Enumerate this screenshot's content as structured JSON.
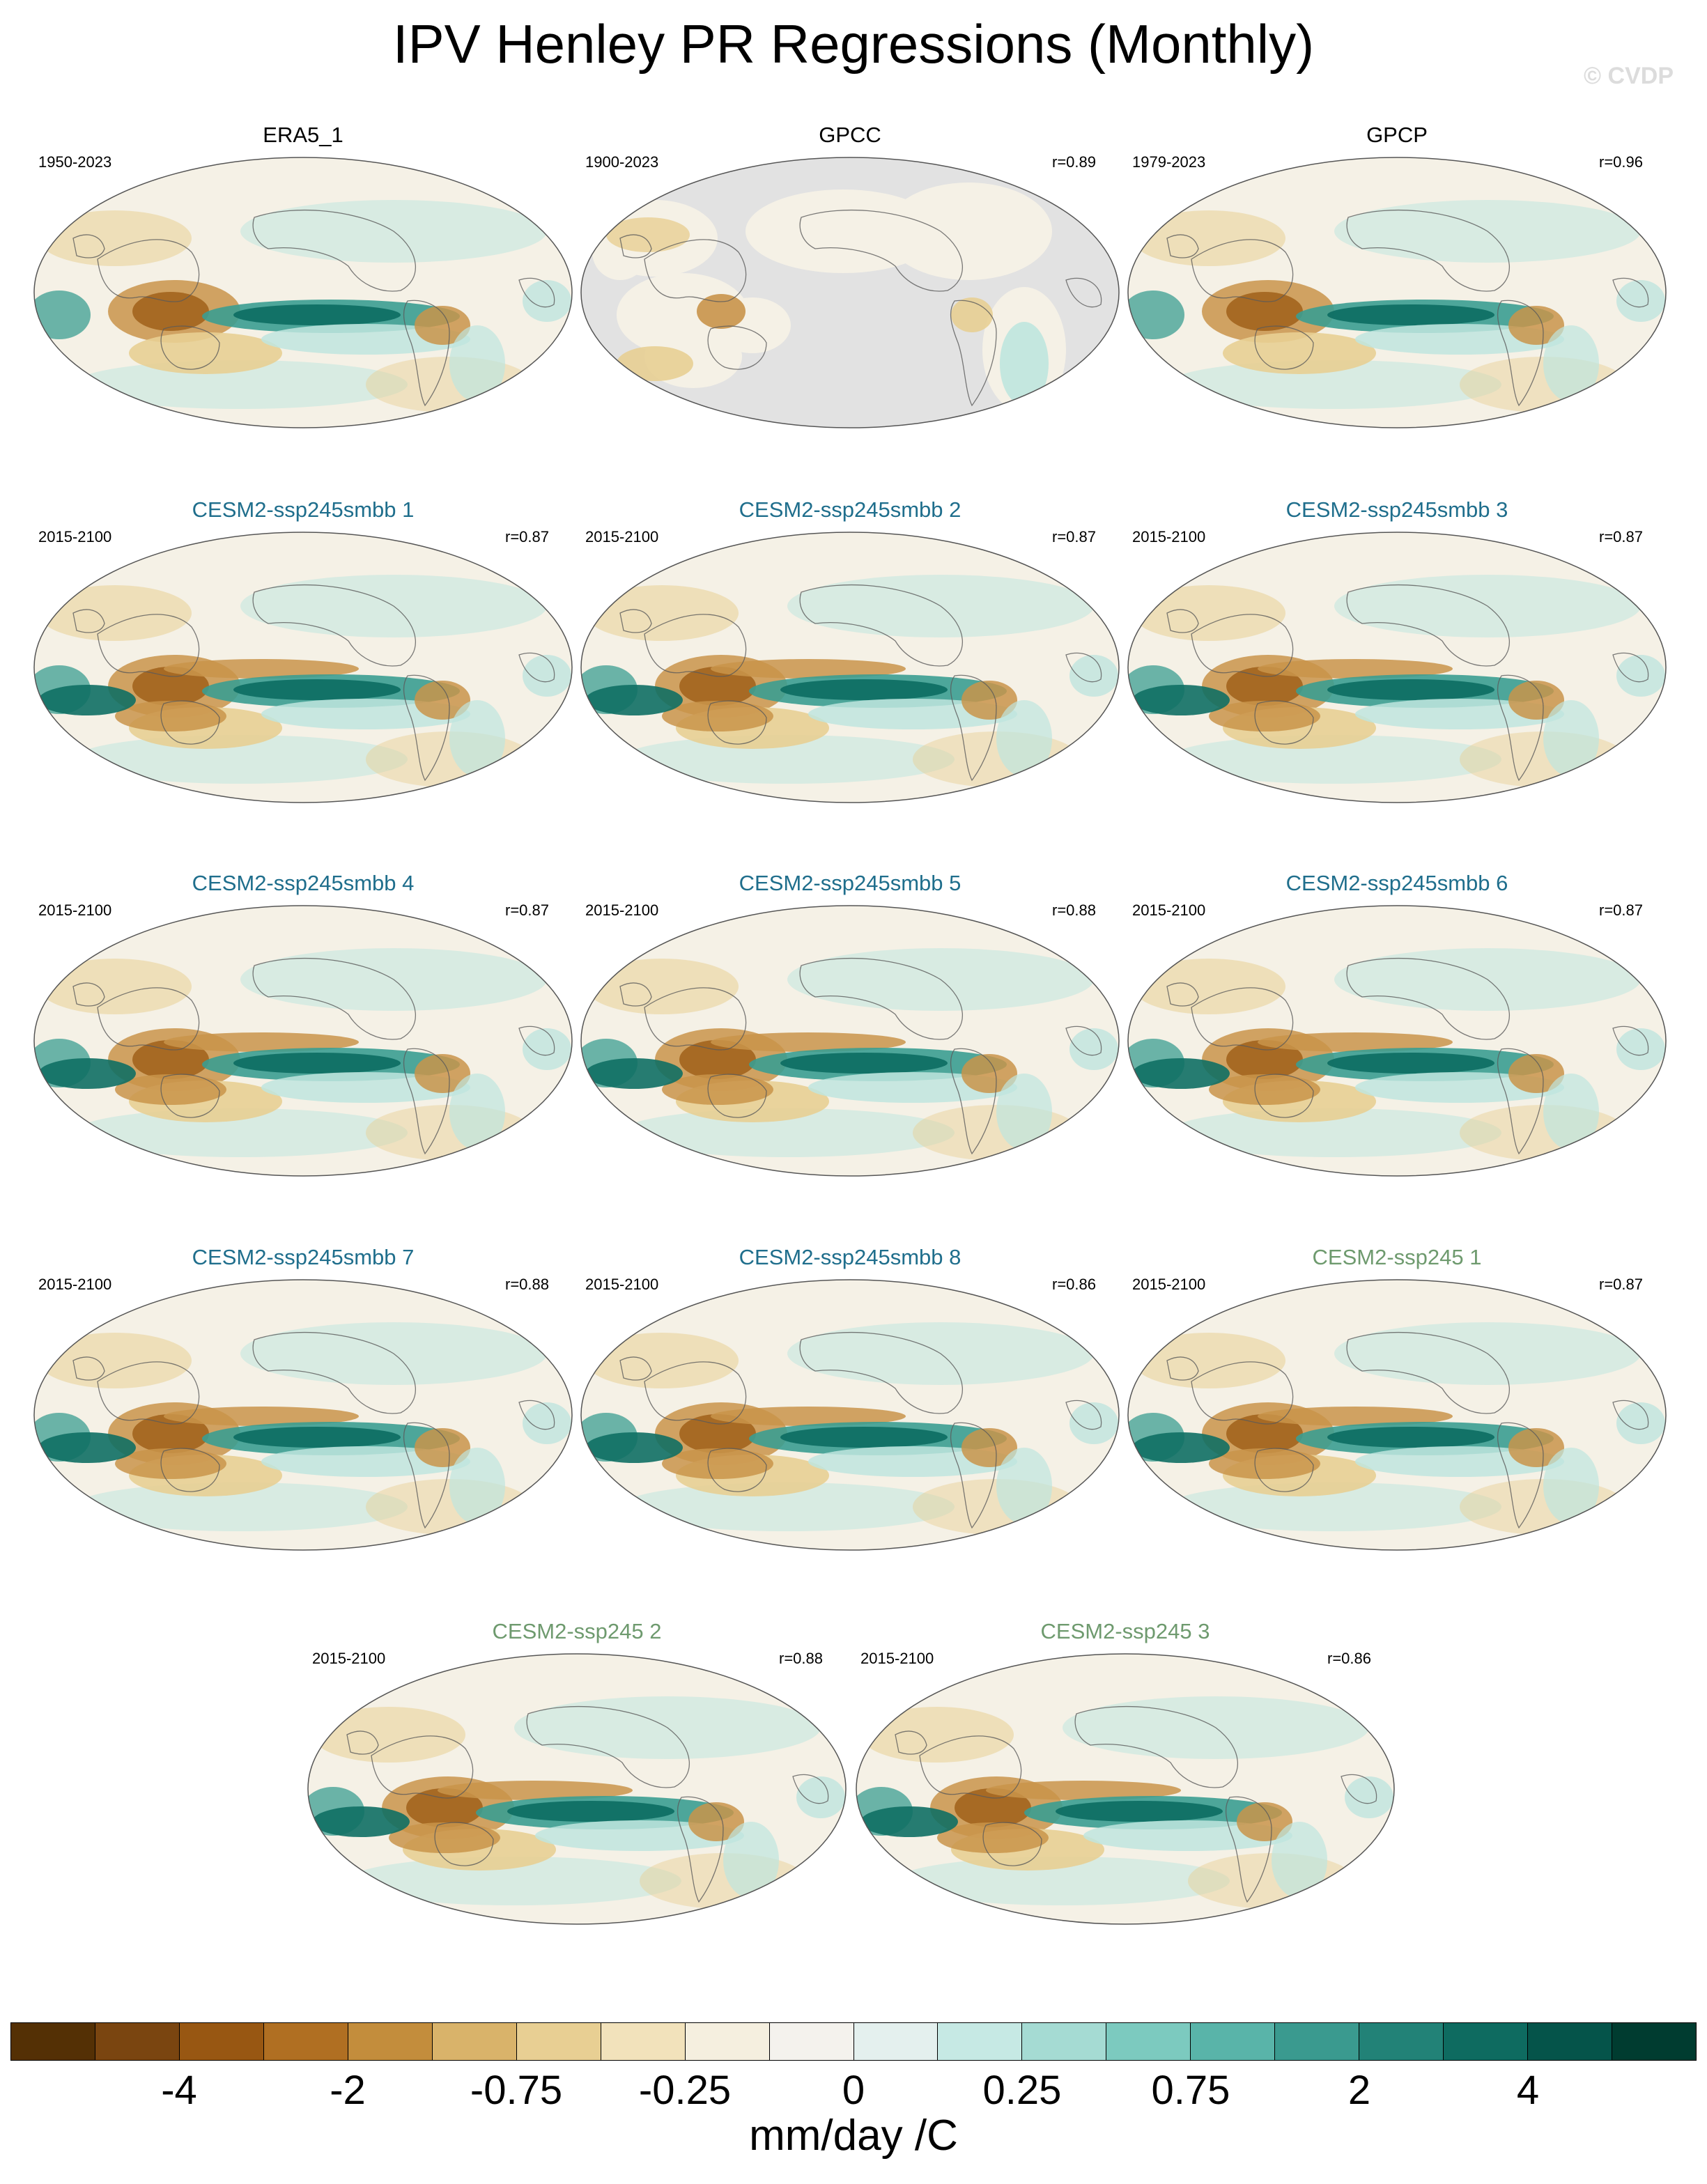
{
  "title": "IPV Henley PR Regressions (Monthly)",
  "watermark": "© CVDP",
  "panels": [
    {
      "name": "ERA5_1",
      "style": "obs",
      "years": "1950-2023",
      "r": "",
      "pattern": "obs"
    },
    {
      "name": "GPCC",
      "style": "obs",
      "years": "1900-2023",
      "r": "r=0.89",
      "pattern": "land"
    },
    {
      "name": "GPCP",
      "style": "obs",
      "years": "1979-2023",
      "r": "r=0.96",
      "pattern": "obs"
    },
    {
      "name": "CESM2-ssp245smbb 1",
      "style": "smbb",
      "years": "2015-2100",
      "r": "r=0.87",
      "pattern": "model"
    },
    {
      "name": "CESM2-ssp245smbb 2",
      "style": "smbb",
      "years": "2015-2100",
      "r": "r=0.87",
      "pattern": "model"
    },
    {
      "name": "CESM2-ssp245smbb 3",
      "style": "smbb",
      "years": "2015-2100",
      "r": "r=0.87",
      "pattern": "model"
    },
    {
      "name": "CESM2-ssp245smbb 4",
      "style": "smbb",
      "years": "2015-2100",
      "r": "r=0.87",
      "pattern": "model"
    },
    {
      "name": "CESM2-ssp245smbb 5",
      "style": "smbb",
      "years": "2015-2100",
      "r": "r=0.88",
      "pattern": "model"
    },
    {
      "name": "CESM2-ssp245smbb 6",
      "style": "smbb",
      "years": "2015-2100",
      "r": "r=0.87",
      "pattern": "model"
    },
    {
      "name": "CESM2-ssp245smbb 7",
      "style": "smbb",
      "years": "2015-2100",
      "r": "r=0.88",
      "pattern": "model"
    },
    {
      "name": "CESM2-ssp245smbb 8",
      "style": "smbb",
      "years": "2015-2100",
      "r": "r=0.86",
      "pattern": "model"
    },
    {
      "name": "CESM2-ssp245 1",
      "style": "ssp",
      "years": "2015-2100",
      "r": "r=0.87",
      "pattern": "model"
    },
    {
      "name": "CESM2-ssp245 2",
      "style": "ssp",
      "years": "2015-2100",
      "r": "r=0.88",
      "pattern": "model"
    },
    {
      "name": "CESM2-ssp245 3",
      "style": "ssp",
      "years": "2015-2100",
      "r": "r=0.86",
      "pattern": "model"
    }
  ],
  "colorbar": {
    "colors": [
      "#543005",
      "#7a4510",
      "#985712",
      "#b06f22",
      "#c38d3c",
      "#d9b36a",
      "#e8cf93",
      "#f2e2bb",
      "#f5efdf",
      "#f4f2ed",
      "#e4f0ee",
      "#c6e9e4",
      "#a5dbd3",
      "#7ccabf",
      "#59b4a9",
      "#3a9a8f",
      "#228277",
      "#0e6b60",
      "#05544a",
      "#003c30"
    ],
    "labels": [
      "-4",
      "-2",
      "-0.75",
      "-0.25",
      "0",
      "0.25",
      "0.75",
      "2",
      "4"
    ],
    "units": "mm/day /C"
  },
  "map_colors": {
    "ocean_bg": "#f5f1e6",
    "land_mask": "#e2e2e2",
    "coast": "#5a5a5a",
    "brown_dark": "#a2641e",
    "brown_mid": "#c9944a",
    "brown_light": "#e8cf93",
    "teal_dark": "#0f6f64",
    "teal_mid": "#3b9d91",
    "teal_light": "#bfe5de"
  }
}
